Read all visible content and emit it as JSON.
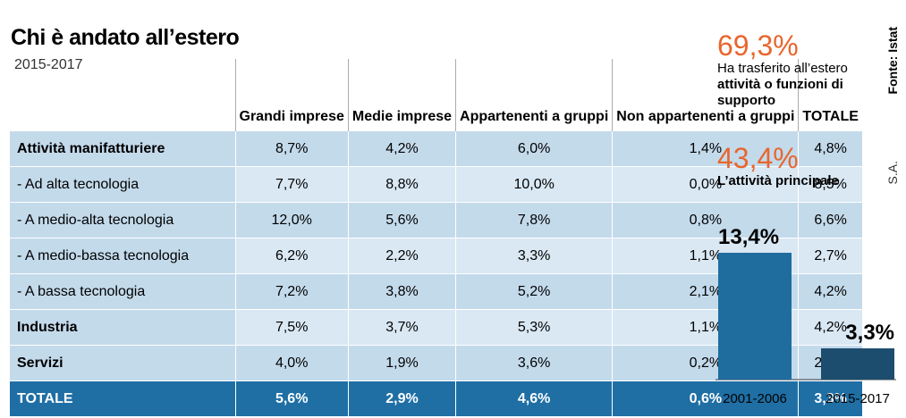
{
  "title": "Chi è andato all’estero",
  "subtitle": "2015-2017",
  "table": {
    "columns": [
      "Grandi imprese",
      "Medie imprese",
      "Appartenenti a gruppi",
      "Non appartenenti a gruppi",
      "TOTALE"
    ],
    "rows": [
      [
        "Attività manifatturiere",
        "8,7%",
        "4,2%",
        "6,0%",
        "1,4%",
        "4,8%"
      ],
      [
        "- Ad alta tecnologia",
        "7,7%",
        "8,8%",
        "10,0%",
        "0,0%",
        "8,5%"
      ],
      [
        "- A medio-alta tecnologia",
        "12,0%",
        "5,6%",
        "7,8%",
        "0,8%",
        "6,6%"
      ],
      [
        "- A medio-bassa tecnologia",
        "6,2%",
        "2,2%",
        "3,3%",
        "1,1%",
        "2,7%"
      ],
      [
        "- A bassa tecnologia",
        "7,2%",
        "3,8%",
        "5,2%",
        "2,1%",
        "4,2%"
      ],
      [
        "Industria",
        "7,5%",
        "3,7%",
        "5,3%",
        "1,1%",
        "4,2%"
      ],
      [
        "Servizi",
        "4,0%",
        "1,9%",
        "3,6%",
        "0,2%",
        "2,3%"
      ],
      [
        "TOTALE",
        "5,6%",
        "2,9%",
        "4,6%",
        "0,6%",
        "3,3%"
      ]
    ]
  },
  "stats": [
    {
      "value": "69,3%",
      "parts": [
        {
          "text": "Ha trasferito all’estero ",
          "bold": false
        },
        {
          "text": "attività o funzioni di supporto",
          "bold": true
        }
      ]
    },
    {
      "value": "43,4%",
      "parts": [
        {
          "text": "L’attività principale",
          "bold": true
        }
      ]
    }
  ],
  "chart_data": {
    "type": "bar",
    "categories": [
      "2001-2006",
      "2015-2017"
    ],
    "values": [
      13.4,
      3.3
    ],
    "value_labels": [
      "13,4%",
      "3,3%"
    ],
    "colors": [
      "#1f6d9e",
      "#1d4d6e"
    ]
  },
  "source": "Fonte: Istat",
  "credit": "S.A."
}
